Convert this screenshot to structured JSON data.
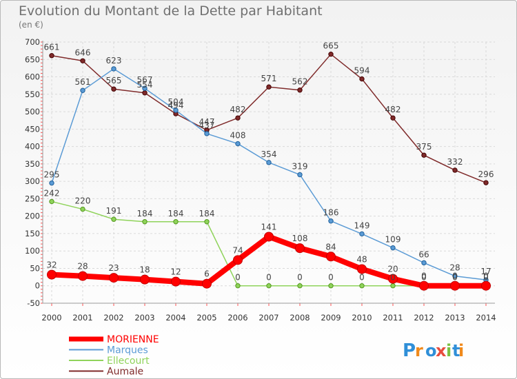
{
  "chart_data": {
    "type": "line",
    "title": "Evolution du Montant de la Dette par Habitant",
    "subtitle": "(en €)",
    "x": [
      "2000",
      "2001",
      "2002",
      "2003",
      "2004",
      "2005",
      "2006",
      "2007",
      "2008",
      "2009",
      "2010",
      "2011",
      "2012",
      "2013",
      "2014"
    ],
    "ylim": [
      -50,
      700
    ],
    "yticks": [
      -50,
      0,
      50,
      100,
      150,
      200,
      250,
      300,
      350,
      400,
      450,
      500,
      550,
      600,
      650,
      700
    ],
    "grid": true,
    "legend_position": "bottom-left",
    "series": [
      {
        "name": "MORIENNE",
        "color": "#ff0000",
        "values": [
          32,
          28,
          23,
          18,
          12,
          6,
          74,
          141,
          108,
          84,
          48,
          20,
          0,
          0,
          0
        ]
      },
      {
        "name": "Marques",
        "color": "#5b9bd5",
        "values": [
          295,
          561,
          623,
          567,
          504,
          437,
          408,
          354,
          319,
          186,
          149,
          109,
          66,
          28,
          17
        ]
      },
      {
        "name": "Ellecourt",
        "color": "#8fd35a",
        "values": [
          242,
          220,
          191,
          184,
          184,
          184,
          0,
          0,
          0,
          0,
          0,
          0,
          0,
          0,
          0
        ]
      },
      {
        "name": "Aumale",
        "color": "#7f2a2a",
        "values": [
          661,
          646,
          565,
          554,
          494,
          447,
          482,
          571,
          562,
          665,
          594,
          482,
          375,
          332,
          296
        ]
      }
    ]
  },
  "logo": {
    "text": "Proxiti"
  }
}
